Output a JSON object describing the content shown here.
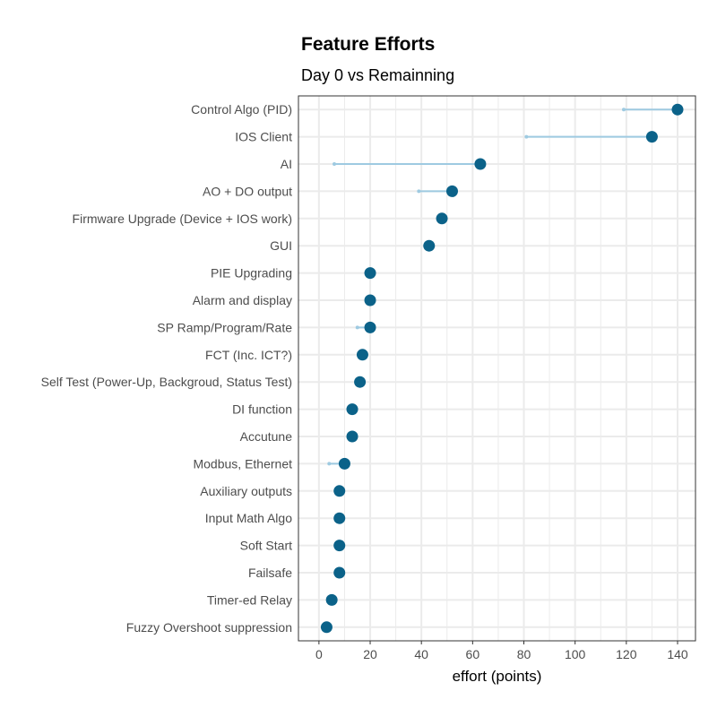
{
  "chart_data": {
    "type": "dumbbell",
    "title": "Feature Efforts",
    "subtitle": "Day 0 vs Remainning",
    "xlabel": "effort (points)",
    "ylabel": "",
    "xlim": [
      -8,
      147
    ],
    "xticks": [
      0,
      20,
      40,
      60,
      80,
      100,
      120,
      140
    ],
    "grid": true,
    "colors": {
      "day0": "#0b6289",
      "remaining": "#9ecae1",
      "grid": "#ebebeb",
      "panel_border": "#333333"
    },
    "series": [
      {
        "name": "Day 0",
        "values": [
          140,
          130,
          63,
          52,
          48,
          43,
          20,
          20,
          20,
          17,
          16,
          13,
          13,
          10,
          8,
          8,
          8,
          8,
          5,
          3
        ]
      },
      {
        "name": "Remainning",
        "values": [
          119,
          81,
          6,
          39,
          48,
          43,
          20,
          20,
          15,
          17,
          16,
          13,
          13,
          4,
          8,
          8,
          8,
          8,
          5,
          3
        ]
      }
    ],
    "categories": [
      "Control Algo (PID)",
      "IOS Client",
      "AI",
      "AO + DO output",
      "Firmware Upgrade (Device + IOS work)",
      "GUI",
      "PIE Upgrading",
      "Alarm and display",
      "SP Ramp/Program/Rate",
      "FCT (Inc. ICT?)",
      "Self Test (Power-Up, Backgroud, Status Test)",
      "DI function",
      "Accutune",
      "Modbus, Ethernet",
      "Auxiliary outputs",
      "Input Math Algo",
      "Soft Start",
      "Failsafe",
      "Timer-ed Relay",
      "Fuzzy Overshoot suppression"
    ]
  }
}
